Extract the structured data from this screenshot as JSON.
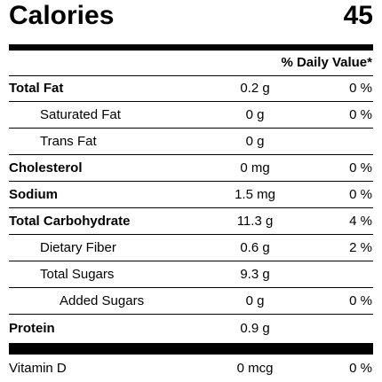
{
  "calories": {
    "label": "Calories",
    "value": "45"
  },
  "daily_value_header": "% Daily Value*",
  "nutrients": [
    {
      "label": "Total Fat",
      "amount": "0.2 g",
      "dv": "0 %"
    },
    {
      "label": "Saturated Fat",
      "amount": "0 g",
      "dv": "0 %"
    },
    {
      "label": "Trans Fat",
      "amount": "0 g",
      "dv": ""
    },
    {
      "label": "Cholesterol",
      "amount": "0 mg",
      "dv": "0 %"
    },
    {
      "label": "Sodium",
      "amount": "1.5 mg",
      "dv": "0 %"
    },
    {
      "label": "Total Carbohydrate",
      "amount": "11.3 g",
      "dv": "4 %"
    },
    {
      "label": "Dietary Fiber",
      "amount": "0.6 g",
      "dv": "2 %"
    },
    {
      "label": "Total Sugars",
      "amount": "9.3 g",
      "dv": ""
    },
    {
      "label": "Added Sugars",
      "amount": "0 g",
      "dv": "0 %"
    },
    {
      "label": "Protein",
      "amount": "0.9 g",
      "dv": ""
    }
  ],
  "vitamins": [
    {
      "label": "Vitamin D",
      "amount": "0 mcg",
      "dv": "0 %"
    }
  ]
}
